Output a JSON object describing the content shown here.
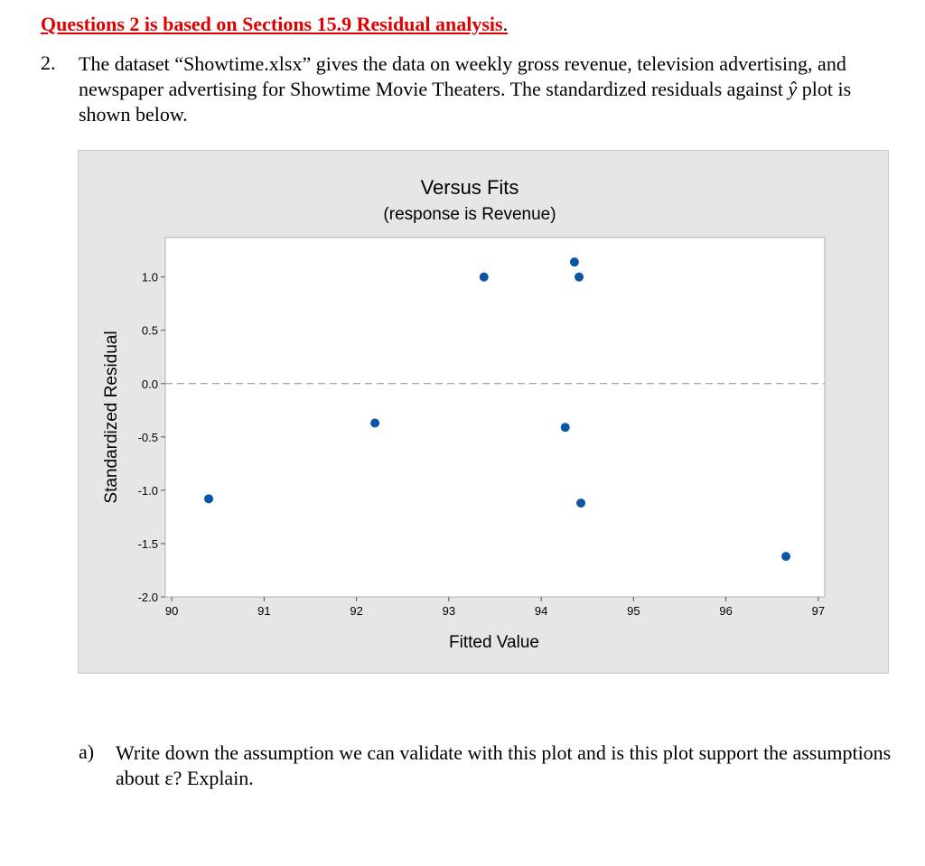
{
  "heading": "Questions 2 is based on Sections 15.9 Residual analysis",
  "heading_end": ".",
  "question": {
    "number": "2.",
    "text_before": "The dataset “Showtime.xlsx” gives the data on weekly gross revenue, television advertising, and newspaper advertising for Showtime Movie Theaters. The standardized residuals against ",
    "yhat": "ŷ",
    "text_after": " plot is shown below."
  },
  "chart_data": {
    "type": "scatter",
    "title": "Versus Fits",
    "subtitle": "(response is Revenue)",
    "xlabel": "Fitted Value",
    "ylabel": "Standardized Residual",
    "xlim": [
      89.93,
      97.07
    ],
    "ylim": [
      -2.0,
      1.37
    ],
    "xticks": [
      90,
      91,
      92,
      93,
      94,
      95,
      96,
      97
    ],
    "xtick_labels": [
      "90",
      "91",
      "92",
      "93",
      "94",
      "95",
      "96",
      "97"
    ],
    "yticks": [
      1.0,
      0.5,
      0.0,
      -0.5,
      -1.0,
      -1.5,
      -2.0
    ],
    "ytick_labels": [
      "1.0",
      "0.5",
      "0.0",
      "-0.5",
      "-1.0",
      "-1.5",
      "-2.0"
    ],
    "reference_line_y": 0,
    "point_color": "#0a55a5",
    "points": [
      {
        "x": 90.4,
        "y": -1.08
      },
      {
        "x": 92.2,
        "y": -0.37
      },
      {
        "x": 93.38,
        "y": 1.0
      },
      {
        "x": 94.26,
        "y": -0.41
      },
      {
        "x": 94.36,
        "y": 1.14
      },
      {
        "x": 94.41,
        "y": 1.0
      },
      {
        "x": 94.43,
        "y": -1.12
      },
      {
        "x": 96.65,
        "y": -1.62
      }
    ]
  },
  "sub_question": {
    "label": "a)",
    "text": "Write down the assumption we can validate with this plot and is this plot support the assumptions about ε? Explain."
  }
}
